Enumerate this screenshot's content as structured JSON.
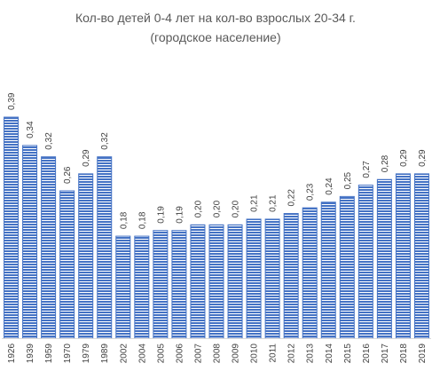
{
  "chart_data": {
    "type": "bar",
    "title_line1": "Кол-во детей 0-4 лет на кол-во взрослых 20-34 г.",
    "title_line2": "(городское население)",
    "xlabel": "",
    "ylabel": "",
    "ylim": [
      0,
      0.45
    ],
    "grid": false,
    "legend": "none",
    "bar_color": "#4472c4",
    "bar_pattern": "horizontal-stripes",
    "categories": [
      "1926",
      "1939",
      "1959",
      "1970",
      "1979",
      "1989",
      "2002",
      "2004",
      "2005",
      "2006",
      "2007",
      "2008",
      "2009",
      "2010",
      "2011",
      "2012",
      "2013",
      "2014",
      "2015",
      "2016",
      "2017",
      "2018",
      "2019"
    ],
    "values": [
      0.39,
      0.34,
      0.32,
      0.26,
      0.29,
      0.32,
      0.18,
      0.18,
      0.19,
      0.19,
      0.2,
      0.2,
      0.2,
      0.21,
      0.21,
      0.22,
      0.23,
      0.24,
      0.25,
      0.27,
      0.28,
      0.29,
      0.29
    ],
    "value_labels": [
      "0,39",
      "0,34",
      "0,32",
      "0,26",
      "0,29",
      "0,32",
      "0,18",
      "0,18",
      "0,19",
      "0,19",
      "0,20",
      "0,20",
      "0,20",
      "0,21",
      "0,21",
      "0,22",
      "0,23",
      "0,24",
      "0,25",
      "0,27",
      "0,28",
      "0,29",
      "0,29"
    ]
  }
}
